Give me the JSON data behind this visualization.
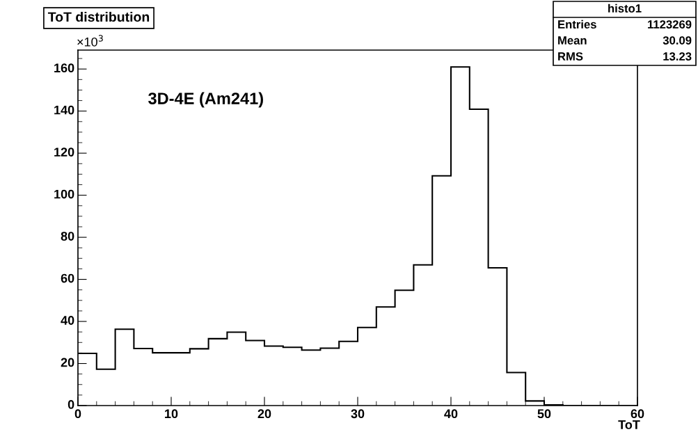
{
  "chart_data": {
    "type": "histogram",
    "title": "ToT distribution",
    "xlabel": "ToT",
    "ylabel": "×10$^{3}$",
    "bins": [
      0,
      2,
      4,
      6,
      8,
      10,
      12,
      14,
      16,
      18,
      20,
      22,
      24,
      26,
      28,
      30,
      32,
      34,
      36,
      38,
      40,
      42,
      44,
      46,
      48,
      50,
      52,
      54,
      56,
      58,
      60
    ],
    "values": [
      24.8,
      17.3,
      36.3,
      27.1,
      25.1,
      25.1,
      27.0,
      31.8,
      34.9,
      30.9,
      28.3,
      27.7,
      26.4,
      27.3,
      30.5,
      37.1,
      46.9,
      54.8,
      66.9,
      109.2,
      161,
      140.9,
      65.5,
      15.7,
      2.2,
      0.3,
      0,
      0,
      0,
      0
    ],
    "color": "#000000",
    "xlim": [
      0,
      60
    ],
    "xticks": [
      0,
      10,
      20,
      30,
      40,
      50,
      60
    ],
    "ylim": [
      0,
      169
    ],
    "yticks": [
      0,
      20,
      40,
      60,
      80,
      100,
      120,
      140,
      160
    ],
    "grid": false,
    "annotations": [
      "3D-4E (Am241)",
      "histo1",
      "Entries",
      "1123269",
      "Mean",
      "30.09",
      "RMS",
      "13.23"
    ]
  }
}
